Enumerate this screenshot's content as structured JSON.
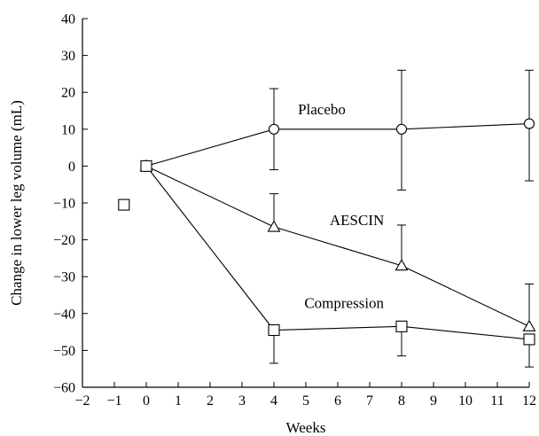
{
  "chart_data": {
    "type": "line",
    "xlabel": "Weeks",
    "ylabel": "Change in lower leg volume (mL)",
    "xlim": [
      -2,
      12
    ],
    "ylim": [
      -60,
      40
    ],
    "xticks": [
      -2,
      -1,
      0,
      1,
      2,
      3,
      4,
      5,
      6,
      7,
      8,
      9,
      10,
      11,
      12
    ],
    "yticks": [
      -60,
      -50,
      -40,
      -30,
      -20,
      -10,
      0,
      10,
      20,
      30,
      40
    ],
    "xtick_labels": [
      "−2",
      "−1",
      "0",
      "1",
      "2",
      "3",
      "4",
      "5",
      "6",
      "7",
      "8",
      "9",
      "10",
      "11",
      "12"
    ],
    "ytick_labels": [
      "−60",
      "−50",
      "−40",
      "−30",
      "−20",
      "−10",
      "0",
      "10",
      "20",
      "30",
      "40"
    ],
    "grid": false,
    "series": [
      {
        "name": "Placebo",
        "marker": "circle",
        "x": [
          0,
          4,
          8,
          12
        ],
        "y": [
          0,
          10,
          10,
          11.5
        ],
        "err_low": [
          null,
          -1,
          -6.5,
          -4
        ],
        "err_high": [
          null,
          21,
          26,
          26
        ],
        "label_at": [
          5.5,
          14
        ]
      },
      {
        "name": "AESCIN",
        "marker": "triangle",
        "x": [
          0,
          4,
          8,
          12
        ],
        "y": [
          0,
          -16.5,
          -27,
          -43.5
        ],
        "err_low": [
          null,
          null,
          null,
          null
        ],
        "err_high": [
          null,
          -7.5,
          -16,
          -32
        ],
        "label_at": [
          6.6,
          -16
        ]
      },
      {
        "name": "Compression",
        "marker": "square",
        "x": [
          0,
          4,
          8,
          12
        ],
        "y": [
          0,
          -44.5,
          -43.5,
          -47
        ],
        "err_low": [
          null,
          -53.5,
          -51.5,
          -54.5
        ],
        "err_high": [
          null,
          null,
          null,
          null
        ],
        "label_at": [
          6.2,
          -38.5
        ]
      }
    ],
    "isolated_points": [
      {
        "x": -0.7,
        "y": -10.5,
        "marker": "square"
      }
    ]
  }
}
